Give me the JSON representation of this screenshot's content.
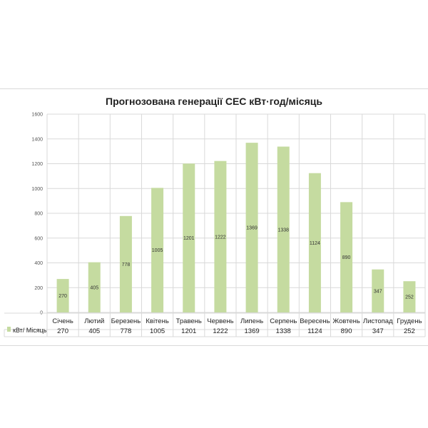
{
  "chart_data": {
    "type": "bar",
    "title": "Прогнозована генерації СЕС кВт·год/місяць",
    "categories": [
      "Січень",
      "Лютий",
      "Березень",
      "Квітень",
      "Травень",
      "Червень",
      "Липень",
      "Серпень",
      "Вересень",
      "Жовтень",
      "Листопад",
      "Грудень"
    ],
    "series": [
      {
        "name": "кВт/ Місяць",
        "values": [
          270,
          405,
          778,
          1005,
          1201,
          1222,
          1369,
          1338,
          1124,
          890,
          347,
          252
        ]
      }
    ],
    "ylim": [
      0,
      1600
    ],
    "yticks": [
      0,
      200,
      400,
      600,
      800,
      1000,
      1200,
      1400,
      1600
    ],
    "grid": true,
    "data_table": true,
    "colors": {
      "bar": "#c5dba0",
      "grid": "#d9d9d9",
      "legend_key": "#c5dba0"
    }
  }
}
